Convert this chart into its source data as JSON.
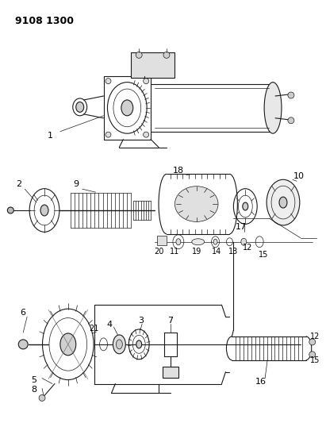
{
  "title": "9108 1300",
  "background_color": "#f5f5f5",
  "line_color": "#1a1a1a",
  "text_color": "#000000",
  "fig_width": 4.11,
  "fig_height": 5.33,
  "dpi": 100
}
